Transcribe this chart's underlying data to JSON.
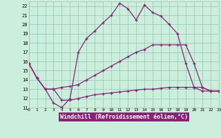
{
  "xlabel": "Windchill (Refroidissement éolien,°C)",
  "bg_color": "#cceedd",
  "grid_color": "#99ccbb",
  "line_color": "#882277",
  "xlim": [
    0,
    23
  ],
  "ylim": [
    11,
    22.5
  ],
  "yticks": [
    11,
    12,
    13,
    14,
    15,
    16,
    17,
    18,
    19,
    20,
    21,
    22
  ],
  "xticks": [
    0,
    1,
    2,
    3,
    4,
    5,
    6,
    7,
    8,
    9,
    10,
    11,
    12,
    13,
    14,
    15,
    16,
    17,
    18,
    19,
    20,
    21,
    22,
    23
  ],
  "line1_x": [
    0,
    1,
    2,
    3,
    4,
    5,
    6,
    7,
    8,
    9,
    10,
    11,
    12,
    13,
    14,
    15,
    16,
    17,
    18,
    19,
    20,
    21,
    22,
    23
  ],
  "line1_y": [
    15.8,
    14.2,
    13.0,
    11.5,
    11.0,
    12.0,
    17.0,
    18.5,
    19.3,
    20.2,
    21.0,
    22.3,
    21.7,
    20.5,
    22.1,
    21.3,
    20.9,
    20.0,
    19.0,
    15.8,
    13.2,
    12.8,
    12.8,
    12.8
  ],
  "line2_x": [
    0,
    1,
    2,
    3,
    4,
    5,
    6,
    7,
    8,
    9,
    10,
    11,
    12,
    13,
    14,
    15,
    16,
    17,
    18,
    19,
    20,
    21,
    22,
    23
  ],
  "line2_y": [
    15.8,
    14.2,
    13.0,
    13.0,
    13.2,
    13.3,
    13.5,
    14.0,
    14.5,
    15.0,
    15.5,
    16.0,
    16.5,
    17.0,
    17.3,
    17.8,
    17.8,
    17.8,
    17.8,
    17.8,
    15.8,
    13.2,
    12.8,
    12.8
  ],
  "line3_x": [
    0,
    1,
    2,
    3,
    4,
    5,
    6,
    7,
    8,
    9,
    10,
    11,
    12,
    13,
    14,
    15,
    16,
    17,
    18,
    19,
    20,
    21,
    22,
    23
  ],
  "line3_y": [
    15.8,
    14.2,
    13.0,
    13.0,
    11.8,
    11.8,
    12.0,
    12.2,
    12.4,
    12.5,
    12.6,
    12.7,
    12.8,
    12.9,
    13.0,
    13.0,
    13.1,
    13.2,
    13.2,
    13.2,
    13.2,
    13.2,
    12.8,
    12.8
  ]
}
